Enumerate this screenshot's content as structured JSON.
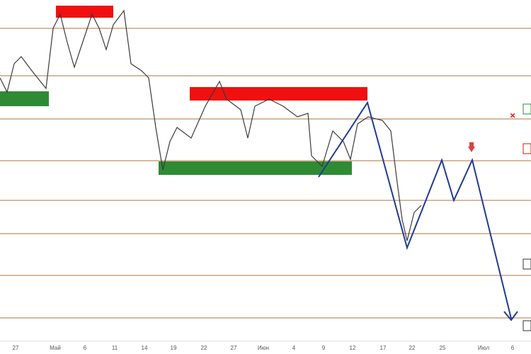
{
  "x_axis": {
    "labels": [
      "27",
      "Май",
      "6",
      "11",
      "14",
      "19",
      "22",
      "27",
      "Июн",
      "4",
      "9",
      "12",
      "17",
      "22",
      "25",
      "Июл",
      "6"
    ]
  }
}
